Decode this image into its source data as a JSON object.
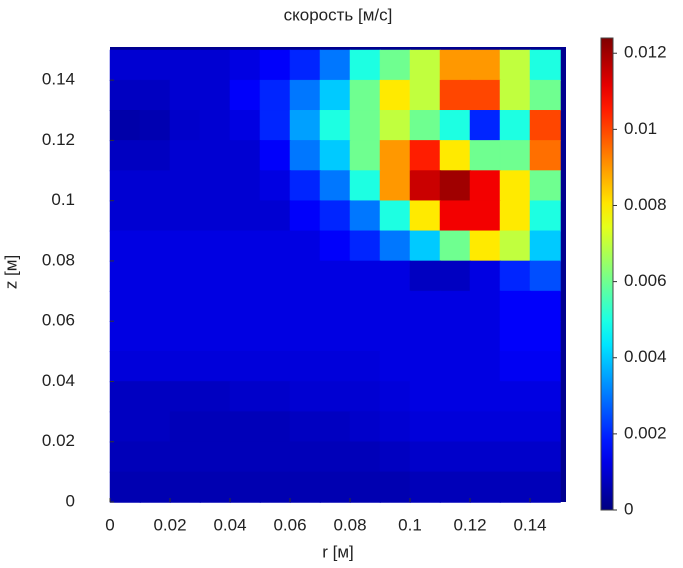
{
  "chart_data": {
    "type": "heatmap",
    "title": "скорость [м/с]",
    "x_label": "r [м]",
    "y_label": "z [м]",
    "xlim": [
      0,
      0.152
    ],
    "ylim": [
      0,
      0.151
    ],
    "xticks": [
      0,
      0.02,
      0.04,
      0.06,
      0.08,
      0.1,
      0.12,
      0.14
    ],
    "yticks": [
      0,
      0.02,
      0.04,
      0.06,
      0.08,
      0.1,
      0.12,
      0.14
    ],
    "clim": [
      0,
      0.0124
    ],
    "cticks": [
      0,
      0.002,
      0.004,
      0.006,
      0.008,
      0.01,
      0.012
    ],
    "colormap": "jet",
    "x": [
      0.005,
      0.015,
      0.025,
      0.035,
      0.045,
      0.055,
      0.065,
      0.075,
      0.085,
      0.095,
      0.105,
      0.115,
      0.125,
      0.135,
      0.145
    ],
    "y": [
      0.145,
      0.135,
      0.125,
      0.115,
      0.105,
      0.095,
      0.085,
      0.075,
      0.065,
      0.055,
      0.045,
      0.035,
      0.025,
      0.015,
      0.005
    ],
    "values": [
      [
        0.001,
        0.001,
        0.001,
        0.001,
        0.0012,
        0.0015,
        0.002,
        0.003,
        0.005,
        0.006,
        0.007,
        0.009,
        0.009,
        0.007,
        0.005
      ],
      [
        0.0008,
        0.0008,
        0.001,
        0.001,
        0.0015,
        0.002,
        0.003,
        0.004,
        0.006,
        0.008,
        0.007,
        0.01,
        0.01,
        0.007,
        0.006
      ],
      [
        0.0005,
        0.0006,
        0.0009,
        0.001,
        0.0012,
        0.002,
        0.0035,
        0.005,
        0.006,
        0.007,
        0.006,
        0.005,
        0.002,
        0.005,
        0.01
      ],
      [
        0.0008,
        0.0008,
        0.001,
        0.001,
        0.001,
        0.0015,
        0.003,
        0.004,
        0.006,
        0.009,
        0.0105,
        0.008,
        0.006,
        0.006,
        0.0095
      ],
      [
        0.001,
        0.001,
        0.001,
        0.001,
        0.001,
        0.0012,
        0.002,
        0.003,
        0.005,
        0.009,
        0.0115,
        0.012,
        0.011,
        0.008,
        0.006
      ],
      [
        0.001,
        0.001,
        0.001,
        0.001,
        0.001,
        0.001,
        0.0015,
        0.002,
        0.003,
        0.005,
        0.008,
        0.011,
        0.011,
        0.008,
        0.005
      ],
      [
        0.0012,
        0.0012,
        0.0012,
        0.0012,
        0.0012,
        0.0012,
        0.0012,
        0.0015,
        0.002,
        0.003,
        0.004,
        0.006,
        0.008,
        0.007,
        0.004
      ],
      [
        0.0012,
        0.0012,
        0.0012,
        0.0012,
        0.0012,
        0.0012,
        0.0012,
        0.0012,
        0.0012,
        0.0012,
        0.0008,
        0.0008,
        0.0012,
        0.002,
        0.0025
      ],
      [
        0.0012,
        0.0012,
        0.0012,
        0.0012,
        0.0012,
        0.0012,
        0.0012,
        0.0012,
        0.0012,
        0.0012,
        0.0012,
        0.0012,
        0.0012,
        0.0015,
        0.0015
      ],
      [
        0.0012,
        0.0012,
        0.0012,
        0.0012,
        0.0012,
        0.0012,
        0.0012,
        0.0012,
        0.0012,
        0.0012,
        0.0012,
        0.0012,
        0.0012,
        0.0015,
        0.0015
      ],
      [
        0.0011,
        0.0011,
        0.0011,
        0.0011,
        0.0011,
        0.0011,
        0.0011,
        0.0011,
        0.0011,
        0.0012,
        0.0012,
        0.0012,
        0.0012,
        0.0014,
        0.0014
      ],
      [
        0.0008,
        0.0008,
        0.0008,
        0.0008,
        0.0009,
        0.0009,
        0.001,
        0.001,
        0.001,
        0.0011,
        0.0012,
        0.0012,
        0.0012,
        0.0012,
        0.0012
      ],
      [
        0.0008,
        0.0008,
        0.0007,
        0.0007,
        0.0007,
        0.0007,
        0.0008,
        0.0008,
        0.0009,
        0.001,
        0.0011,
        0.0011,
        0.0011,
        0.0011,
        0.0011
      ],
      [
        0.0007,
        0.0007,
        0.0007,
        0.0007,
        0.0007,
        0.0007,
        0.0007,
        0.0007,
        0.0007,
        0.0008,
        0.0009,
        0.0009,
        0.0009,
        0.0009,
        0.0009
      ],
      [
        0.0006,
        0.0006,
        0.0006,
        0.0006,
        0.0006,
        0.0006,
        0.0006,
        0.0006,
        0.0006,
        0.0006,
        0.0007,
        0.0007,
        0.0007,
        0.0007,
        0.0007
      ]
    ]
  }
}
